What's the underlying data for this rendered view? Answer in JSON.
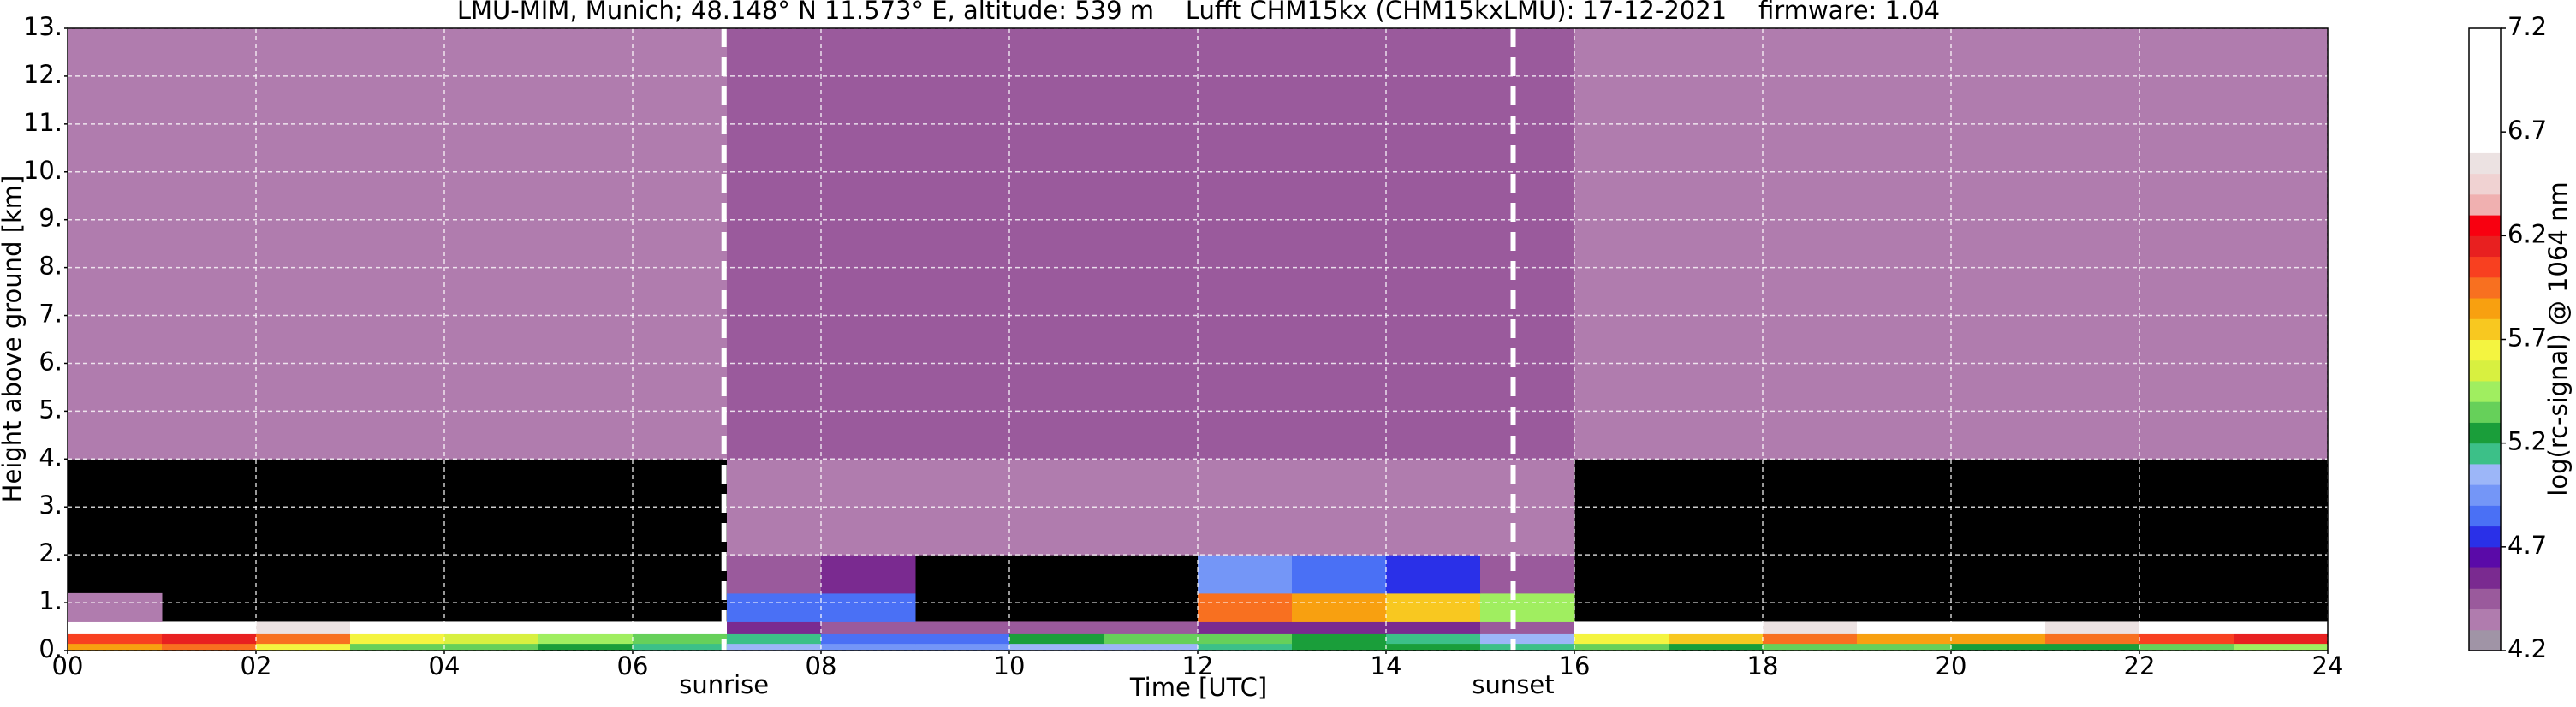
{
  "chart_data": {
    "type": "heatmap",
    "title": "LMU-MIM, Munich; 48.148° N 11.573° E, altitude: 539 m    Lufft CHM15kx (CHM15kxLMU): 17-12-2021    firmware: 1.04",
    "x_label": "Time [UTC]",
    "y_label": "Height above ground [km]",
    "colorbar_label": "log(rc-signal) @ 1064 nm",
    "x_bins": [
      0,
      1,
      2,
      3,
      4,
      5,
      6,
      7,
      8,
      9,
      10,
      11,
      12,
      13,
      14,
      15,
      16,
      17,
      18,
      19,
      20,
      21,
      22,
      23,
      24
    ],
    "y_bins": [
      0,
      0.15,
      0.35,
      0.6,
      1.2,
      2,
      4,
      8,
      13
    ],
    "values": [
      [
        5.8,
        5.9,
        5.6,
        5.3,
        5.3,
        5.2,
        5.1,
        5.0,
        4.9,
        4.9,
        5.0,
        5.0,
        5.1,
        5.2,
        5.2,
        5.1,
        5.3,
        5.2,
        5.3,
        5.3,
        5.2,
        5.2,
        5.3,
        5.4
      ],
      [
        6.0,
        6.1,
        5.9,
        5.6,
        5.5,
        5.4,
        5.3,
        5.1,
        4.8,
        4.8,
        5.2,
        5.3,
        5.3,
        5.2,
        5.1,
        5.0,
        5.6,
        5.7,
        5.9,
        5.8,
        5.8,
        5.9,
        6.0,
        6.1
      ],
      [
        6.7,
        6.6,
        6.5,
        6.6,
        6.7,
        6.7,
        6.8,
        4.5,
        4.4,
        4.4,
        4.4,
        4.4,
        4.5,
        4.5,
        4.5,
        4.4,
        6.6,
        6.6,
        6.5,
        6.6,
        6.6,
        6.5,
        6.6,
        6.7
      ],
      [
        4.3,
        null,
        null,
        null,
        null,
        null,
        null,
        4.8,
        4.8,
        null,
        null,
        null,
        5.9,
        5.8,
        5.7,
        5.4,
        null,
        null,
        null,
        null,
        null,
        null,
        null,
        null
      ],
      [
        null,
        null,
        null,
        null,
        null,
        null,
        null,
        4.4,
        4.5,
        null,
        null,
        null,
        4.9,
        4.8,
        4.7,
        4.4,
        null,
        null,
        null,
        null,
        null,
        null,
        null,
        null
      ],
      [
        null,
        null,
        null,
        null,
        null,
        null,
        null,
        4.3,
        4.3,
        4.3,
        4.3,
        4.3,
        4.3,
        4.3,
        4.3,
        4.3,
        null,
        null,
        null,
        null,
        null,
        null,
        null,
        null
      ],
      [
        4.3,
        4.3,
        4.3,
        4.3,
        4.3,
        4.3,
        4.3,
        4.4,
        4.4,
        4.4,
        4.4,
        4.4,
        4.4,
        4.4,
        4.4,
        4.4,
        4.3,
        4.3,
        4.3,
        4.3,
        4.3,
        4.3,
        4.3,
        4.3
      ],
      [
        4.3,
        4.3,
        4.3,
        4.3,
        4.3,
        4.3,
        4.3,
        4.4,
        4.4,
        4.4,
        4.4,
        4.4,
        4.4,
        4.4,
        4.4,
        4.4,
        4.3,
        4.3,
        4.3,
        4.3,
        4.3,
        4.3,
        4.3,
        4.3
      ]
    ],
    "background": "#000000",
    "clim": [
      4.2,
      7.2
    ],
    "cticks": [
      4.2,
      4.7,
      5.2,
      5.7,
      6.2,
      6.7,
      7.2
    ],
    "colors": [
      "#a094a6",
      "#b07cae",
      "#9a5a9c",
      "#7a2a90",
      "#5a0aa8",
      "#2a30e8",
      "#4a70f5",
      "#7496f7",
      "#9cb6f8",
      "#3cc088",
      "#1a9e3a",
      "#66d05a",
      "#a0ee60",
      "#d8f040",
      "#f4f440",
      "#f8c820",
      "#f8a010",
      "#f87020",
      "#f84020",
      "#e82020",
      "#f80010",
      "#f0b0b0",
      "#f0d2d2",
      "#ece2e2",
      "#ffffff",
      "#ffffff",
      "#ffffff",
      "#ffffff",
      "#ffffff",
      "#ffffff"
    ],
    "xlim": [
      0,
      24
    ],
    "ylim": [
      0,
      13
    ],
    "xticks": [
      {
        "value": 0,
        "label": "00"
      },
      {
        "value": 2,
        "label": "02"
      },
      {
        "value": 4,
        "label": "04"
      },
      {
        "value": 6,
        "label": "06"
      },
      {
        "value": 8,
        "label": "08"
      },
      {
        "value": 10,
        "label": "10"
      },
      {
        "value": 12,
        "label": "12"
      },
      {
        "value": 14,
        "label": "14"
      },
      {
        "value": 16,
        "label": "16"
      },
      {
        "value": 18,
        "label": "18"
      },
      {
        "value": 20,
        "label": "20"
      },
      {
        "value": 22,
        "label": "22"
      },
      {
        "value": 24,
        "label": "24"
      }
    ],
    "yticks": [
      {
        "value": 0,
        "label": "0."
      },
      {
        "value": 1,
        "label": "1."
      },
      {
        "value": 2,
        "label": "2."
      },
      {
        "value": 3,
        "label": "3."
      },
      {
        "value": 4,
        "label": "4."
      },
      {
        "value": 5,
        "label": "5."
      },
      {
        "value": 6,
        "label": "6."
      },
      {
        "value": 7,
        "label": "7."
      },
      {
        "value": 8,
        "label": "8."
      },
      {
        "value": 9,
        "label": "9."
      },
      {
        "value": 10,
        "label": "10."
      },
      {
        "value": 11,
        "label": "11."
      },
      {
        "value": 12,
        "label": "12."
      },
      {
        "value": 13,
        "label": "13."
      }
    ],
    "grid": true,
    "vlines": [
      {
        "x": 6.97,
        "label": "sunrise"
      },
      {
        "x": 15.35,
        "label": "sunset"
      }
    ]
  }
}
